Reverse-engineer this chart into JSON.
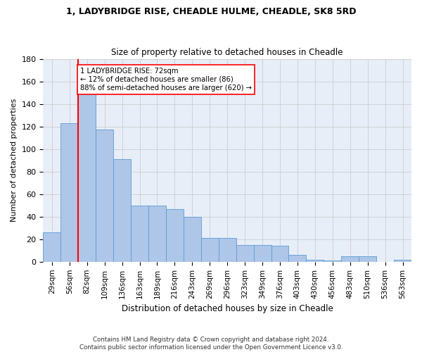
{
  "title1": "1, LADYBRIDGE RISE, CHEADLE HULME, CHEADLE, SK8 5RD",
  "title2": "Size of property relative to detached houses in Cheadle",
  "xlabel": "Distribution of detached houses by size in Cheadle",
  "ylabel": "Number of detached properties",
  "categories": [
    "29sqm",
    "56sqm",
    "82sqm",
    "109sqm",
    "136sqm",
    "163sqm",
    "189sqm",
    "216sqm",
    "243sqm",
    "269sqm",
    "296sqm",
    "323sqm",
    "349sqm",
    "376sqm",
    "403sqm",
    "430sqm",
    "456sqm",
    "483sqm",
    "510sqm",
    "536sqm",
    "563sqm"
  ],
  "values": [
    26,
    123,
    149,
    117,
    91,
    50,
    50,
    47,
    40,
    21,
    21,
    15,
    15,
    14,
    6,
    2,
    1,
    5,
    5,
    0,
    2
  ],
  "bar_color": "#aec6e8",
  "bar_edge_color": "#5b9bd5",
  "vline_x": 1.5,
  "vline_color": "red",
  "annotation_text": "1 LADYBRIDGE RISE: 72sqm\n← 12% of detached houses are smaller (86)\n88% of semi-detached houses are larger (620) →",
  "annotation_box_color": "white",
  "annotation_box_edge_color": "red",
  "ylim": [
    0,
    180
  ],
  "yticks": [
    0,
    20,
    40,
    60,
    80,
    100,
    120,
    140,
    160,
    180
  ],
  "footer": "Contains HM Land Registry data © Crown copyright and database right 2024.\nContains public sector information licensed under the Open Government Licence v3.0.",
  "grid_color": "#cccccc",
  "background_color": "#e8eef8"
}
